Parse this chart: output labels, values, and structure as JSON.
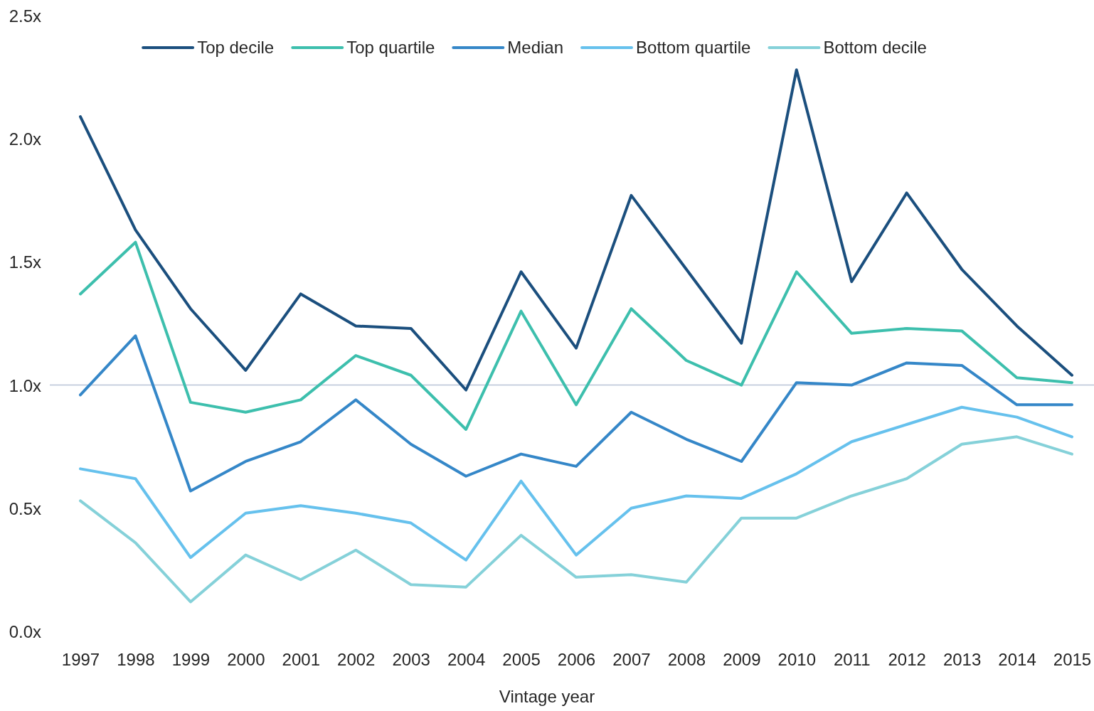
{
  "chart_data": {
    "type": "line",
    "xlabel": "Vintage year",
    "categories": [
      "1997",
      "1998",
      "1999",
      "2000",
      "2001",
      "2002",
      "2003",
      "2004",
      "2005",
      "2006",
      "2007",
      "2008",
      "2009",
      "2010",
      "2011",
      "2012",
      "2013",
      "2014",
      "2015"
    ],
    "series": [
      {
        "name": "Top decile",
        "color": "#1b4f7e",
        "values": [
          2.09,
          1.63,
          1.31,
          1.06,
          1.37,
          1.24,
          1.23,
          0.98,
          1.46,
          1.15,
          1.77,
          1.47,
          1.17,
          2.28,
          1.42,
          1.78,
          1.47,
          1.24,
          1.04
        ]
      },
      {
        "name": "Top quartile",
        "color": "#3dbfad",
        "values": [
          1.37,
          1.58,
          0.93,
          0.89,
          0.94,
          1.12,
          1.04,
          0.82,
          1.3,
          0.92,
          1.31,
          1.1,
          1.0,
          1.46,
          1.21,
          1.23,
          1.22,
          1.03,
          1.01
        ]
      },
      {
        "name": "Median",
        "color": "#3587c8",
        "values": [
          0.96,
          1.2,
          0.57,
          0.69,
          0.77,
          0.94,
          0.76,
          0.63,
          0.72,
          0.67,
          0.89,
          0.78,
          0.69,
          1.01,
          1.0,
          1.09,
          1.08,
          0.92,
          0.92
        ]
      },
      {
        "name": "Bottom quartile",
        "color": "#66c1ed",
        "values": [
          0.66,
          0.62,
          0.3,
          0.48,
          0.51,
          0.48,
          0.44,
          0.29,
          0.61,
          0.31,
          0.5,
          0.55,
          0.54,
          0.64,
          0.77,
          0.84,
          0.91,
          0.87,
          0.79
        ]
      },
      {
        "name": "Bottom decile",
        "color": "#85d1d9",
        "values": [
          0.53,
          0.36,
          0.12,
          0.31,
          0.21,
          0.33,
          0.19,
          0.18,
          0.39,
          0.22,
          0.23,
          0.2,
          0.46,
          0.46,
          0.55,
          0.62,
          0.76,
          0.79,
          0.72
        ]
      }
    ],
    "ylim": [
      0,
      2.5
    ],
    "yticks": [
      {
        "value": 0,
        "label": "0.0x"
      },
      {
        "value": 0.5,
        "label": "0.5x"
      },
      {
        "value": 1,
        "label": "1.0x"
      },
      {
        "value": 1.5,
        "label": "1.5x"
      },
      {
        "value": 2,
        "label": "2.0x"
      },
      {
        "value": 2.5,
        "label": "2.5x"
      }
    ],
    "ref_lines": [
      {
        "axis": "y",
        "value": 1,
        "color": "#b8c2d6"
      }
    ],
    "legend": "top"
  }
}
